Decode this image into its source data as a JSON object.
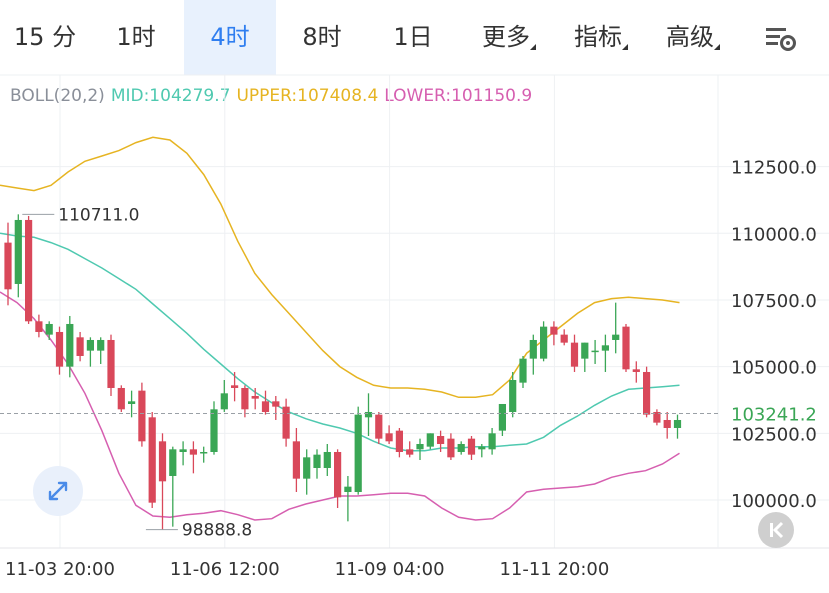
{
  "tabs": [
    {
      "label": "15 分",
      "active": false
    },
    {
      "label": "1时",
      "active": false
    },
    {
      "label": "4时",
      "active": true
    },
    {
      "label": "8时",
      "active": false
    },
    {
      "label": "1日",
      "active": false
    },
    {
      "label": "更多",
      "active": false,
      "dropdown": true
    },
    {
      "label": "指标",
      "active": false,
      "dropdown": true
    },
    {
      "label": "高级",
      "active": false,
      "dropdown": true
    }
  ],
  "settings_icon": "chart-settings-icon",
  "indicator": {
    "name": "BOLL(20,2)",
    "mid": "MID:104279.7",
    "upper": "UPPER:107408.4",
    "lower": "LOWER:101150.9",
    "colors": {
      "mid": "#4fc9b0",
      "upper": "#e6b422",
      "lower": "#d65fb0"
    }
  },
  "colors": {
    "up": "#3aa655",
    "down": "#d9485a",
    "active_tab": "#2f7ef0",
    "active_tab_bg": "#e8f1fd"
  },
  "chart_data": {
    "type": "candlestick",
    "y_axis_labels": [
      "112500.0",
      "110000.0",
      "107500.0",
      "105000.0",
      "102500.0",
      "100000.0"
    ],
    "ylim": [
      98400,
      115500
    ],
    "x_axis_labels": [
      {
        "label": "11-03 20:00",
        "index": 0
      },
      {
        "label": "11-06 12:00",
        "index": 16
      },
      {
        "label": "11-09 04:00",
        "index": 32
      },
      {
        "label": "11-11 20:00",
        "index": 48
      }
    ],
    "current_price": "103241.2",
    "current_value": 103241.2,
    "annotations": [
      {
        "label": "110711.0",
        "index": 1,
        "value": 110711.0
      },
      {
        "label": "98888.8",
        "index": 13,
        "value": 98888.8
      }
    ],
    "candles": [
      [
        109650,
        110400,
        107300,
        107900
      ],
      [
        108100,
        110711,
        107600,
        110500
      ],
      [
        110500,
        110650,
        106600,
        106700
      ],
      [
        106700,
        106950,
        106100,
        106300
      ],
      [
        106200,
        106700,
        106000,
        106600
      ],
      [
        106300,
        106500,
        104700,
        105000
      ],
      [
        105000,
        106900,
        104600,
        106600
      ],
      [
        106100,
        106300,
        105200,
        105400
      ],
      [
        105600,
        106100,
        105000,
        106000
      ],
      [
        105600,
        106100,
        105100,
        106000
      ],
      [
        106000,
        106200,
        103900,
        104200
      ],
      [
        104200,
        104300,
        103300,
        103400
      ],
      [
        103600,
        104100,
        103100,
        103700
      ],
      [
        104100,
        104400,
        102000,
        102200
      ],
      [
        103100,
        103300,
        99700,
        99900
      ],
      [
        102200,
        102500,
        98888.8,
        100700
      ],
      [
        100900,
        102000,
        99000,
        101900
      ],
      [
        101800,
        102200,
        101300,
        101900
      ],
      [
        101900,
        102200,
        101000,
        101700
      ],
      [
        101800,
        102000,
        101400,
        101800
      ],
      [
        101800,
        103700,
        101700,
        103400
      ],
      [
        103400,
        104500,
        103300,
        104000
      ],
      [
        104300,
        104800,
        103700,
        104200
      ],
      [
        104200,
        104300,
        103100,
        103400
      ],
      [
        103900,
        104200,
        103400,
        103800
      ],
      [
        103700,
        104100,
        103200,
        103300
      ],
      [
        103700,
        103900,
        103000,
        103500
      ],
      [
        103500,
        103800,
        102000,
        102300
      ],
      [
        102200,
        102700,
        100300,
        100800
      ],
      [
        100800,
        101900,
        100200,
        101600
      ],
      [
        101200,
        101900,
        100800,
        101700
      ],
      [
        101200,
        102100,
        100900,
        101800
      ],
      [
        101800,
        101900,
        99700,
        100100
      ],
      [
        100300,
        100900,
        99200,
        100500
      ],
      [
        100300,
        103500,
        100200,
        103200
      ],
      [
        103100,
        104000,
        102400,
        103300
      ],
      [
        103200,
        103300,
        102100,
        102300
      ],
      [
        102500,
        102800,
        102100,
        102200
      ],
      [
        102600,
        102700,
        101600,
        101800
      ],
      [
        101900,
        102200,
        101600,
        101700
      ],
      [
        101900,
        102300,
        101500,
        102100
      ],
      [
        102000,
        102500,
        101900,
        102500
      ],
      [
        102400,
        102600,
        101800,
        102100
      ],
      [
        102300,
        102500,
        101500,
        101600
      ],
      [
        101800,
        102200,
        101700,
        102100
      ],
      [
        102300,
        102400,
        101500,
        101700
      ],
      [
        101900,
        102100,
        101600,
        102000
      ],
      [
        101900,
        102700,
        101700,
        102500
      ],
      [
        102600,
        103600,
        102400,
        103600
      ],
      [
        103300,
        104800,
        103100,
        104500
      ],
      [
        104400,
        105400,
        104200,
        105300
      ],
      [
        105300,
        106200,
        104700,
        106000
      ],
      [
        105300,
        106700,
        105200,
        106500
      ],
      [
        106500,
        106700,
        105800,
        106200
      ],
      [
        106200,
        106400,
        105800,
        105900
      ],
      [
        105900,
        106200,
        104800,
        105000
      ],
      [
        105300,
        105900,
        104800,
        105900
      ],
      [
        105600,
        106000,
        105100,
        105600
      ],
      [
        105600,
        106200,
        104800,
        105800
      ],
      [
        106000,
        107400,
        105500,
        106200
      ],
      [
        106500,
        106600,
        104800,
        104900
      ],
      [
        104900,
        105200,
        104400,
        104800
      ],
      [
        104800,
        105000,
        103100,
        103200
      ],
      [
        103300,
        103400,
        102800,
        102900
      ],
      [
        103000,
        103300,
        102300,
        102700
      ],
      [
        102700,
        103200,
        102300,
        103000
      ]
    ],
    "mid_line": [
      110000,
      109900,
      109850,
      109650,
      109400,
      109050,
      108700,
      108300,
      107900,
      107350,
      106800,
      106250,
      105650,
      105100,
      104550,
      104050,
      103650,
      103300,
      103050,
      102850,
      102700,
      102500,
      102200,
      101950,
      101850,
      101850,
      101950,
      101950,
      102000,
      102000,
      102050,
      102100,
      102350,
      102800,
      103150,
      103550,
      103900,
      104150,
      104200,
      104250,
      104300
    ],
    "upper_line": [
      111800,
      111700,
      111600,
      111800,
      112300,
      112700,
      112900,
      113100,
      113400,
      113600,
      113500,
      113000,
      112200,
      111100,
      109700,
      108500,
      107700,
      107000,
      106300,
      105600,
      105000,
      104600,
      104300,
      104200,
      104200,
      104150,
      104050,
      103850,
      103850,
      103950,
      104500,
      105500,
      106000,
      106500,
      107000,
      107400,
      107550,
      107600,
      107550,
      107500,
      107400
    ],
    "lower_line": [
      107800,
      107400,
      106800,
      106000,
      105100,
      104000,
      102600,
      101000,
      99800,
      99400,
      99350,
      99450,
      99500,
      99600,
      99450,
      99250,
      99300,
      99650,
      99850,
      100000,
      100150,
      100150,
      100200,
      100250,
      100250,
      100150,
      99700,
      99350,
      99250,
      99300,
      99700,
      100300,
      100400,
      100450,
      100500,
      100600,
      100850,
      101000,
      101100,
      101350,
      101750
    ]
  }
}
